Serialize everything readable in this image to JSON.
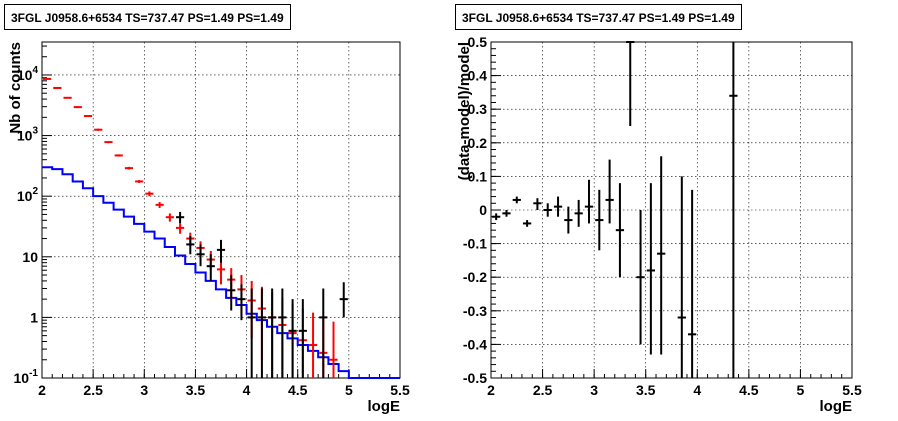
{
  "chart_data": [
    {
      "type": "histogram",
      "title": "3FGL J0958.6+6534 TS=737.47 PS=1.49 PS=1.49",
      "xlabel": "logE",
      "ylabel": "Nb of counts",
      "xlim": [
        2,
        5.5
      ],
      "ylim": [
        0.1,
        35000
      ],
      "yscale": "log",
      "grid": true,
      "x_ticks": [
        "2",
        "2.5",
        "3",
        "3.5",
        "4",
        "4.5",
        "5",
        "5.5"
      ],
      "y_ticks": [
        {
          "value": 0.1,
          "label": "10",
          "exp": "-1"
        },
        {
          "value": 1,
          "label": "1",
          "exp": ""
        },
        {
          "value": 10,
          "label": "10",
          "exp": ""
        },
        {
          "value": 100,
          "label": "10",
          "exp": "2"
        },
        {
          "value": 1000,
          "label": "10",
          "exp": "3"
        },
        {
          "value": 10000,
          "label": "10",
          "exp": "4"
        }
      ],
      "series": [
        {
          "color": "#0000ff",
          "style": "step",
          "bin_edges": [
            2.0,
            2.1,
            2.2,
            2.3,
            2.4,
            2.5,
            2.6,
            2.7,
            2.8,
            2.9,
            3.0,
            3.1,
            3.2,
            3.3,
            3.4,
            3.5,
            3.6,
            3.7,
            3.8,
            3.9,
            4.0,
            4.1,
            4.2,
            4.3,
            4.4,
            4.5,
            4.6,
            4.7,
            4.8,
            4.9,
            5.0,
            5.1,
            5.2,
            5.3,
            5.4,
            5.5
          ],
          "values": [
            300,
            280,
            230,
            175,
            135,
            100,
            78,
            60,
            46,
            35,
            26,
            20,
            14.5,
            10.5,
            7.6,
            5.5,
            4.0,
            2.9,
            2.1,
            1.6,
            1.15,
            0.9,
            0.7,
            0.55,
            0.45,
            0.35,
            0.28,
            0.22,
            0.17,
            0.13,
            0.1,
            0.1,
            0.1,
            0.1,
            0.1
          ]
        },
        {
          "color": "#ff0000",
          "style": "errorbar",
          "x": [
            2.05,
            2.15,
            2.25,
            2.35,
            2.45,
            2.55,
            2.65,
            2.75,
            2.85,
            2.95,
            3.05,
            3.15,
            3.25,
            3.35,
            3.45,
            3.55,
            3.65,
            3.75,
            3.85,
            3.95,
            4.05,
            4.15,
            4.25,
            4.35,
            4.45,
            4.55,
            4.65,
            4.75,
            4.85
          ],
          "y": [
            8600,
            6100,
            4200,
            2950,
            2100,
            1250,
            780,
            470,
            290,
            175,
            110,
            72,
            45,
            30,
            20,
            14,
            9,
            6.2,
            4.2,
            2.9,
            1.9,
            1.4,
            1.0,
            0.75,
            0.55,
            0.42,
            0.35,
            0.26,
            0.2
          ],
          "y_low": [
            8400,
            5950,
            4100,
            2880,
            2050,
            1200,
            750,
            450,
            275,
            165,
            100,
            64,
            38,
            24,
            15,
            10,
            6,
            3.5,
            2.0,
            1.1,
            0.45,
            0.2,
            0.1,
            0.1,
            0.1,
            0.1,
            0.1,
            0.1,
            0.1
          ],
          "y_high": [
            8800,
            6250,
            4300,
            3020,
            2150,
            1300,
            810,
            490,
            305,
            185,
            120,
            80,
            52,
            36,
            25,
            18,
            12.5,
            9,
            6.5,
            5.0,
            4.0,
            3.2,
            2.6,
            2.1,
            1.7,
            1.4,
            1.2,
            1.0,
            0.85
          ]
        },
        {
          "color": "#000000",
          "style": "errorbar",
          "x": [
            3.35,
            3.45,
            3.55,
            3.65,
            3.75,
            3.85,
            3.95,
            4.05,
            4.15,
            4.25,
            4.35,
            4.45,
            4.55,
            4.75,
            4.95
          ],
          "y": [
            45,
            16,
            11,
            7,
            13,
            2.8,
            2.0,
            1.0,
            1.0,
            1.0,
            1.0,
            0.6,
            0.6,
            1.0,
            2.0
          ],
          "y_low": [
            36,
            11,
            7,
            4,
            8,
            1.3,
            0.9,
            0.1,
            0.1,
            0.1,
            0.1,
            0.1,
            0.1,
            0.1,
            1.0
          ],
          "y_high": [
            55,
            22,
            16,
            11,
            19,
            5.0,
            3.5,
            3.0,
            3.0,
            3.0,
            3.0,
            2.0,
            2.0,
            3.0,
            3.8
          ]
        }
      ]
    },
    {
      "type": "errorbar",
      "title": "3FGL J0958.6+6534 TS=737.47 PS=1.49 PS=1.49",
      "xlabel": "logE",
      "ylabel": "(data-model)/model",
      "xlim": [
        2,
        5.5
      ],
      "ylim": [
        -0.5,
        0.5
      ],
      "grid": true,
      "x_ticks": [
        "2",
        "2.5",
        "3",
        "3.5",
        "4",
        "4.5",
        "5",
        "5.5"
      ],
      "y_ticks": [
        "-0.5",
        "-0.4",
        "-0.3",
        "-0.2",
        "-0.1",
        "0",
        "0.1",
        "0.2",
        "0.3",
        "0.4",
        "0.5"
      ],
      "series": [
        {
          "color": "#000000",
          "x": [
            2.05,
            2.15,
            2.25,
            2.35,
            2.45,
            2.55,
            2.65,
            2.75,
            2.85,
            2.95,
            3.05,
            3.15,
            3.25,
            3.35,
            3.45,
            3.55,
            3.65,
            3.85,
            3.95,
            4.35
          ],
          "y": [
            -0.02,
            -0.01,
            0.03,
            -0.04,
            0.02,
            0.0,
            0.01,
            -0.03,
            -0.01,
            0.01,
            -0.03,
            0.03,
            -0.06,
            0.5,
            -0.2,
            -0.18,
            -0.13,
            -0.32,
            -0.37,
            0.34
          ],
          "y_low": [
            -0.03,
            -0.02,
            0.02,
            -0.05,
            0.0,
            -0.02,
            -0.02,
            -0.07,
            -0.05,
            -0.04,
            -0.12,
            -0.04,
            -0.2,
            0.25,
            -0.4,
            -0.43,
            -0.43,
            -0.5,
            -0.5,
            -0.5
          ],
          "y_high": [
            -0.01,
            0.0,
            0.04,
            -0.03,
            0.035,
            0.02,
            0.04,
            0.01,
            0.03,
            0.09,
            0.06,
            0.15,
            0.08,
            0.5,
            0.0,
            0.08,
            0.16,
            0.1,
            0.06,
            0.5
          ]
        }
      ]
    }
  ]
}
